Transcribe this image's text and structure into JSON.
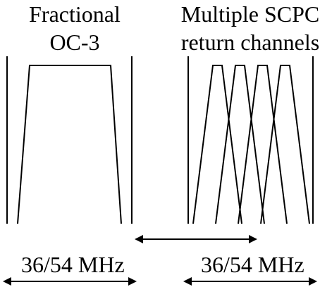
{
  "left_block": {
    "title_line1": "Fractional",
    "title_line2": "OC-3",
    "bandwidth_label": "36/54 MHz"
  },
  "right_block": {
    "title_line1": "Multiple SCPC",
    "title_line2": "return channels",
    "bandwidth_label": "36/54 MHz",
    "channel_count": 4
  },
  "colors": {
    "stroke": "#000000",
    "background": "#ffffff"
  }
}
